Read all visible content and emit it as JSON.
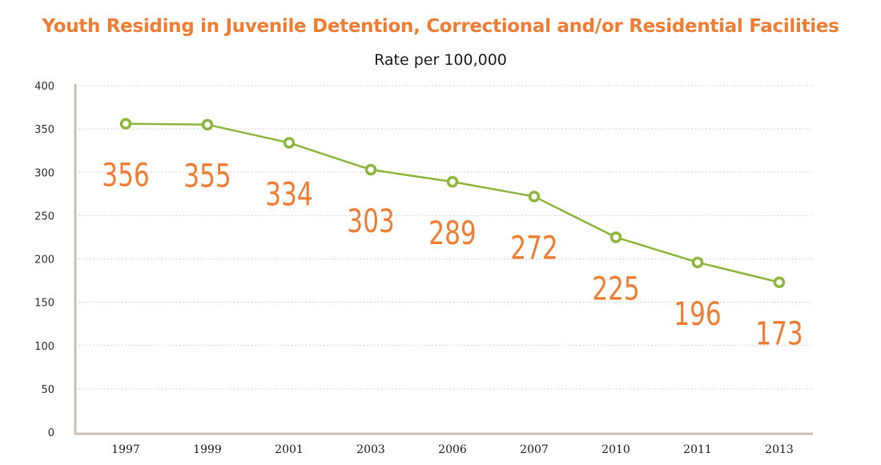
{
  "chart_data": {
    "type": "line",
    "title": "Youth Residing in Juvenile Detention, Correctional and/or Residential Facilities",
    "subtitle": "Rate per 100,000",
    "xlabel": "",
    "ylabel": "",
    "categories": [
      "1997",
      "1999",
      "2001",
      "2003",
      "2006",
      "2007",
      "2010",
      "2011",
      "2013"
    ],
    "series": [
      {
        "values": [
          356,
          355,
          334,
          303,
          289,
          272,
          225,
          196,
          173
        ]
      }
    ],
    "data_labels": [
      "356",
      "355",
      "334",
      "303",
      "289",
      "272",
      "225",
      "196",
      "173"
    ],
    "yticks": [
      "0",
      "50",
      "100",
      "150",
      "200",
      "250",
      "300",
      "350",
      "400"
    ],
    "ylim": [
      0,
      400
    ],
    "grid": true,
    "legend": "none",
    "colors": {
      "line": "#8db63c",
      "labels": "#ef7d33",
      "grid": "#c8c8c8",
      "axis": "#c8bfb0"
    }
  }
}
